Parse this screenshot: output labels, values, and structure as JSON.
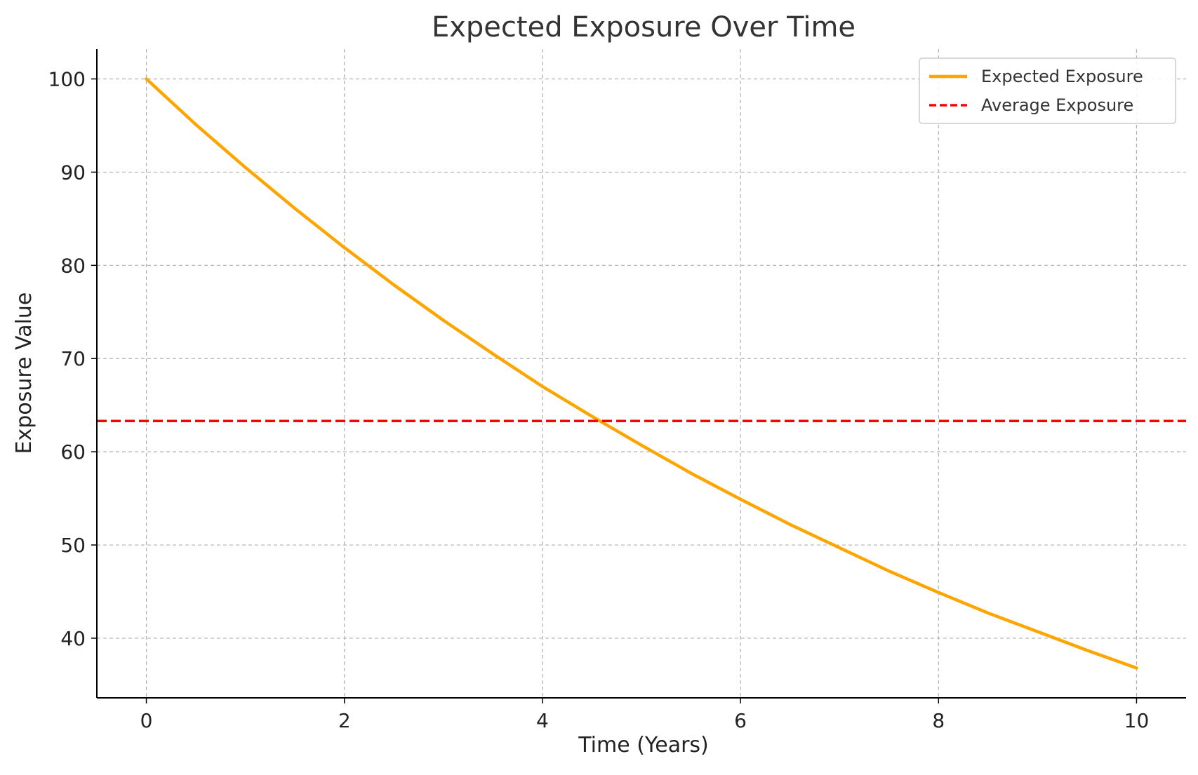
{
  "chart_data": {
    "type": "line",
    "title": "Expected Exposure Over Time",
    "xlabel": "Time (Years)",
    "ylabel": "Exposure Value",
    "xlim": [
      -0.5,
      10.5
    ],
    "ylim": [
      33.6,
      103.2
    ],
    "xticks": [
      0,
      2,
      4,
      6,
      8,
      10
    ],
    "yticks": [
      40,
      50,
      60,
      70,
      80,
      90,
      100
    ],
    "grid": true,
    "legend_position": "top-right",
    "series": [
      {
        "name": "Expected Exposure",
        "color": "#FFA500",
        "style": "solid",
        "x": [
          0,
          0.5,
          1,
          1.5,
          2,
          2.5,
          3,
          3.5,
          4,
          4.5,
          5,
          5.5,
          6,
          6.5,
          7,
          7.5,
          8,
          8.5,
          9,
          9.5,
          10
        ],
        "y": [
          100,
          95.1,
          90.5,
          86.1,
          81.9,
          77.9,
          74.1,
          70.5,
          67.0,
          63.8,
          60.7,
          57.7,
          54.9,
          52.2,
          49.7,
          47.2,
          44.9,
          42.7,
          40.7,
          38.7,
          36.8
        ]
      },
      {
        "name": "Average Exposure",
        "color": "#FF0000",
        "style": "dashed",
        "y_constant": 63.3
      }
    ]
  }
}
